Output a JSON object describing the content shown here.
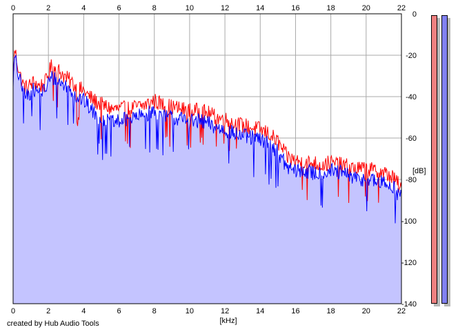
{
  "chart_data": {
    "type": "area",
    "xlabel": "[kHz]",
    "ylabel": "[dB]",
    "xlim": [
      0,
      22
    ],
    "ylim": [
      -140,
      0
    ],
    "x_ticks": [
      0,
      2,
      4,
      6,
      8,
      10,
      12,
      14,
      16,
      18,
      20,
      22
    ],
    "x_tick_labels": [
      "0",
      "2",
      "4",
      "6",
      "8",
      "10",
      "12",
      "14",
      "16",
      "18",
      "20",
      "22"
    ],
    "y_ticks": [
      0,
      -20,
      -40,
      -60,
      -80,
      -100,
      -120,
      -140
    ],
    "y_tick_labels": [
      "0",
      "-20",
      "-40",
      "-60",
      "-80",
      "-100",
      "-120",
      "-140"
    ],
    "grid": true,
    "x": [
      0,
      0.1,
      0.2,
      0.4,
      0.6,
      0.8,
      1.0,
      1.2,
      1.5,
      1.8,
      2.0,
      2.2,
      2.5,
      2.8,
      3.0,
      3.3,
      3.6,
      4.0,
      4.3,
      4.6,
      5.0,
      5.3,
      5.6,
      6.0,
      6.5,
      7.0,
      7.5,
      8.0,
      8.5,
      9.0,
      9.5,
      10.0,
      10.5,
      11.0,
      11.5,
      12.0,
      12.5,
      13.0,
      13.5,
      14.0,
      14.5,
      15.0,
      15.5,
      16.0,
      16.5,
      17.0,
      17.5,
      18.0,
      18.5,
      19.0,
      19.5,
      20.0,
      20.5,
      21.0,
      21.5,
      21.8,
      22.0
    ],
    "series": [
      {
        "color": "#ff0000",
        "values": [
          -30,
          -17,
          -22,
          -30,
          -35,
          -36,
          -34,
          -33,
          -35,
          -34,
          -29,
          -25,
          -27,
          -29,
          -31,
          -33,
          -36,
          -37,
          -40,
          -42,
          -44,
          -45,
          -46,
          -46,
          -46,
          -45,
          -44,
          -42,
          -44,
          -45,
          -46,
          -47,
          -47,
          -48,
          -50,
          -51,
          -53,
          -54,
          -55,
          -56,
          -58,
          -62,
          -69,
          -71,
          -72,
          -72,
          -73,
          -72,
          -73,
          -74,
          -75,
          -75,
          -76,
          -77,
          -79,
          -82,
          -86
        ]
      },
      {
        "color": "#0000ff",
        "values": [
          -32,
          -20,
          -26,
          -33,
          -39,
          -40,
          -38,
          -37,
          -38,
          -37,
          -33,
          -31,
          -32,
          -34,
          -35,
          -37,
          -40,
          -42,
          -45,
          -48,
          -51,
          -52,
          -53,
          -52,
          -51,
          -50,
          -49,
          -47,
          -50,
          -50,
          -51,
          -52,
          -52,
          -53,
          -55,
          -56,
          -58,
          -59,
          -60,
          -61,
          -63,
          -67,
          -74,
          -76,
          -76,
          -77,
          -77,
          -76,
          -77,
          -78,
          -80,
          -80,
          -81,
          -82,
          -83,
          -87,
          -88
        ]
      }
    ]
  },
  "footer": "created by Hub Audio Tools",
  "level_meters": {
    "left_color": "#f08080",
    "right_color": "#8080f0"
  }
}
